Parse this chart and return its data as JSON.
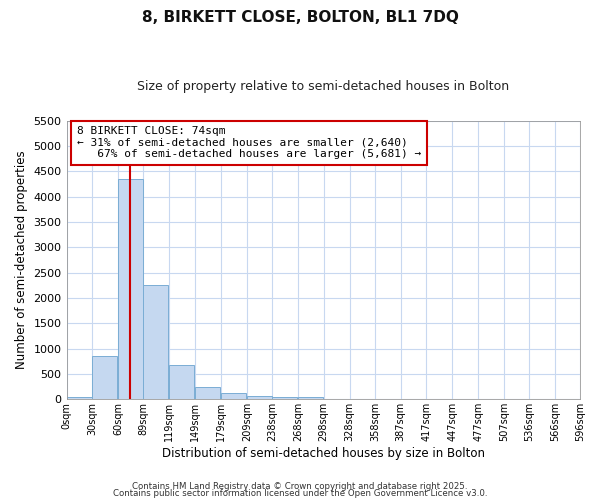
{
  "title": "8, BIRKETT CLOSE, BOLTON, BL1 7DQ",
  "subtitle": "Size of property relative to semi-detached houses in Bolton",
  "xlabel": "Distribution of semi-detached houses by size in Bolton",
  "ylabel": "Number of semi-detached properties",
  "bar_color": "#c5d8f0",
  "bar_edge_color": "#7aadd4",
  "background_color": "#ffffff",
  "axes_bg_color": "#ffffff",
  "grid_color": "#c8d8f0",
  "vline_value": 74,
  "vline_color": "#cc0000",
  "bin_width": 29,
  "bin_starts": [
    0,
    30,
    60,
    89,
    119,
    149,
    179,
    209,
    238,
    268,
    298,
    328,
    358,
    387,
    417,
    447,
    477,
    507,
    536,
    566
  ],
  "bin_labels": [
    "0sqm",
    "30sqm",
    "60sqm",
    "89sqm",
    "119sqm",
    "149sqm",
    "179sqm",
    "209sqm",
    "238sqm",
    "268sqm",
    "298sqm",
    "328sqm",
    "358sqm",
    "387sqm",
    "417sqm",
    "447sqm",
    "477sqm",
    "507sqm",
    "536sqm",
    "566sqm",
    "596sqm"
  ],
  "bar_heights": [
    50,
    850,
    4350,
    2250,
    680,
    250,
    120,
    70,
    55,
    40,
    0,
    0,
    0,
    0,
    0,
    0,
    0,
    0,
    0,
    0
  ],
  "ylim": [
    0,
    5500
  ],
  "yticks": [
    0,
    500,
    1000,
    1500,
    2000,
    2500,
    3000,
    3500,
    4000,
    4500,
    5000,
    5500
  ],
  "annotation_text": "8 BIRKETT CLOSE: 74sqm\n← 31% of semi-detached houses are smaller (2,640)\n   67% of semi-detached houses are larger (5,681) →",
  "annotation_box_color": "#ffffff",
  "annotation_box_edge_color": "#cc0000",
  "footnote1": "Contains HM Land Registry data © Crown copyright and database right 2025.",
  "footnote2": "Contains public sector information licensed under the Open Government Licence v3.0."
}
